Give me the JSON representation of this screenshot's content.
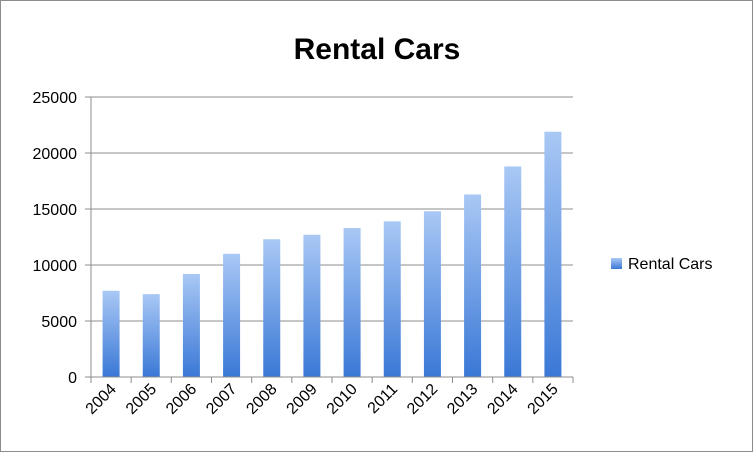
{
  "chart_data": {
    "type": "bar",
    "title": "Rental Cars",
    "xlabel": "",
    "ylabel": "",
    "categories": [
      "2004",
      "2005",
      "2006",
      "2007",
      "2008",
      "2009",
      "2010",
      "2011",
      "2012",
      "2013",
      "2014",
      "2015"
    ],
    "series": [
      {
        "name": "Rental Cars",
        "values": [
          7700,
          7400,
          9200,
          11000,
          12300,
          12700,
          13300,
          13900,
          14800,
          16300,
          18800,
          21900
        ],
        "color_top": "#a9c8f5",
        "color_bottom": "#3a78d6"
      }
    ],
    "ylim": [
      0,
      25000
    ],
    "yticks": [
      0,
      5000,
      10000,
      15000,
      20000,
      25000
    ],
    "grid": true,
    "legend_position": "right"
  }
}
